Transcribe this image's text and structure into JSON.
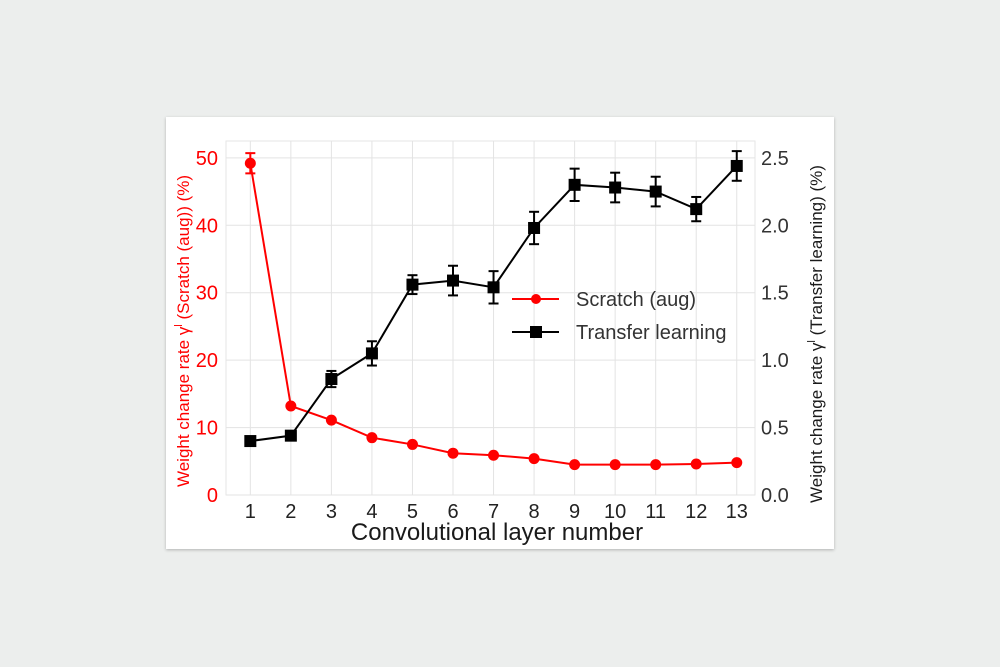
{
  "chart_data": {
    "type": "line",
    "title": "",
    "xlabel": "Convolutional layer number",
    "ylabel_left": "Weight change rate γˡ (Scratch (aug)) (%)",
    "ylabel_right": "Weight change rate γˡ (Transfer learning) (%)",
    "ylabel_left_parts": [
      "Weight change rate γ",
      "l",
      " (Scratch (aug)) (%)"
    ],
    "ylabel_right_parts": [
      "Weight change rate γ",
      "l",
      " (Transfer learning) (%)"
    ],
    "x": [
      1,
      2,
      3,
      4,
      5,
      6,
      7,
      8,
      9,
      10,
      11,
      12,
      13
    ],
    "x_tick_labels": [
      "1",
      "2",
      "3",
      "4",
      "5",
      "6",
      "7",
      "8",
      "9",
      "10",
      "11",
      "12",
      "13"
    ],
    "ylim_left": [
      0,
      52.5
    ],
    "ylim_right": [
      0,
      2.625
    ],
    "yticks_left": [
      "0",
      "10",
      "20",
      "30",
      "40",
      "50"
    ],
    "yticks_left_values": [
      0,
      10,
      20,
      30,
      40,
      50
    ],
    "yticks_right": [
      "0.0",
      "0.5",
      "1.0",
      "1.5",
      "2.0",
      "2.5"
    ],
    "yticks_right_values": [
      0,
      0.5,
      1.0,
      1.5,
      2.0,
      2.5
    ],
    "grid": true,
    "legend_position": "center-right",
    "series": [
      {
        "name": "Scratch (aug)",
        "axis": "left",
        "color": "#ff0000",
        "marker": "circle",
        "values": [
          49.2,
          13.2,
          11.1,
          8.5,
          7.5,
          6.2,
          5.9,
          5.4,
          4.5,
          4.5,
          4.5,
          4.6,
          4.8
        ],
        "errors": [
          1.5,
          0.2,
          0.2,
          0.2,
          0.2,
          0.2,
          0.2,
          0.2,
          0.2,
          0.2,
          0.2,
          0.2,
          0.2
        ]
      },
      {
        "name": "Transfer learning",
        "axis": "right",
        "color": "#000000",
        "marker": "square",
        "values": [
          0.4,
          0.44,
          0.86,
          1.05,
          1.56,
          1.59,
          1.54,
          1.98,
          2.3,
          2.28,
          2.25,
          2.12,
          2.44
        ],
        "errors": [
          0.02,
          0.02,
          0.06,
          0.09,
          0.07,
          0.11,
          0.12,
          0.12,
          0.12,
          0.11,
          0.11,
          0.09,
          0.11
        ]
      }
    ]
  }
}
